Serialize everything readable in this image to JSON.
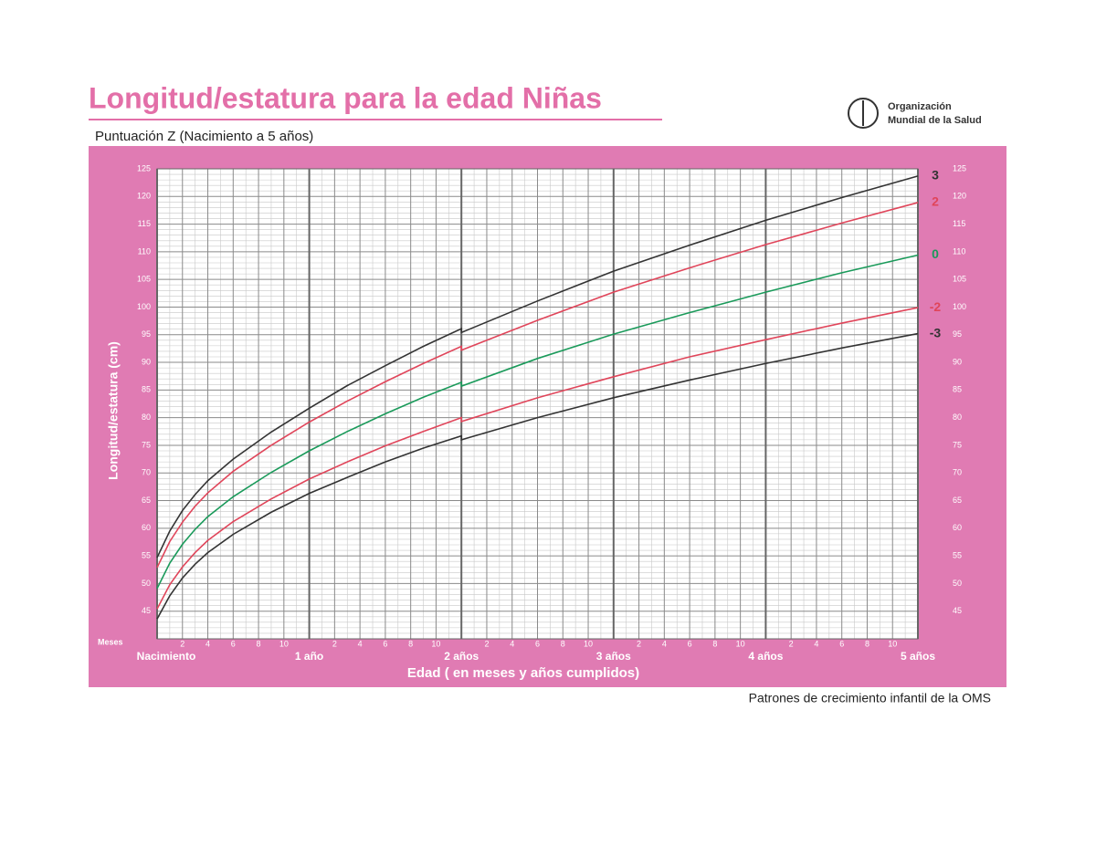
{
  "chart_data": {
    "type": "line",
    "title": "Longitud/estatura para la edad Niñas",
    "subtitle": "Puntuación Z (Nacimiento a 5 años)",
    "organization": [
      "Organización",
      "Mundial de la Salud"
    ],
    "source": "Patrones de crecimiento infantil de la OMS",
    "x_label": "Edad ( en meses y años cumplidos)",
    "x_unit_label": "Meses",
    "y_label": "Longitud/estatura (cm)",
    "x": [
      0,
      1,
      2,
      3,
      4,
      6,
      9,
      12,
      15,
      18,
      21,
      24,
      24,
      30,
      36,
      42,
      48,
      54,
      60
    ],
    "series": [
      {
        "name": "3",
        "color": "#333333",
        "values": [
          54.7,
          59.5,
          63.2,
          66.1,
          68.6,
          72.5,
          77.4,
          81.7,
          85.8,
          89.4,
          92.9,
          96.1,
          95.4,
          101.1,
          106.5,
          111.2,
          115.7,
          119.8,
          123.7
        ]
      },
      {
        "name": "2",
        "color": "#e0455a",
        "values": [
          52.9,
          57.6,
          61.1,
          64.0,
          66.4,
          70.3,
          75.0,
          79.2,
          83.0,
          86.5,
          89.8,
          92.9,
          92.2,
          97.6,
          102.7,
          107.1,
          111.3,
          115.2,
          118.9
        ]
      },
      {
        "name": "0",
        "color": "#1a9a5a",
        "values": [
          49.1,
          53.7,
          57.1,
          59.8,
          62.1,
          65.7,
          70.1,
          74.0,
          77.5,
          80.7,
          83.7,
          86.4,
          85.7,
          90.7,
          95.1,
          99.0,
          102.7,
          106.2,
          109.4
        ]
      },
      {
        "name": "-2",
        "color": "#e0455a",
        "values": [
          45.4,
          49.8,
          53.0,
          55.6,
          57.8,
          61.2,
          65.3,
          68.9,
          72.0,
          74.9,
          77.5,
          80.0,
          79.3,
          83.6,
          87.4,
          91.0,
          94.1,
          97.1,
          99.9
        ]
      },
      {
        "name": "-3",
        "color": "#333333",
        "values": [
          43.6,
          47.8,
          51.0,
          53.5,
          55.6,
          58.9,
          62.9,
          66.3,
          69.2,
          72.0,
          74.5,
          76.7,
          76.0,
          80.0,
          83.6,
          86.8,
          89.8,
          92.6,
          95.2
        ]
      }
    ],
    "xlim": [
      0,
      60
    ],
    "ylim": [
      40,
      125
    ],
    "xticks": [
      {
        "value": 0,
        "label": "Nacimiento"
      },
      2,
      4,
      6,
      8,
      10,
      {
        "value": 12,
        "label": "1 año"
      },
      {
        "value": 14,
        "label": "2"
      },
      {
        "value": 16,
        "label": "4"
      },
      {
        "value": 18,
        "label": "6"
      },
      {
        "value": 20,
        "label": "8"
      },
      {
        "value": 22,
        "label": "10"
      },
      {
        "value": 24,
        "label": "2 años"
      },
      {
        "value": 26,
        "label": "2"
      },
      {
        "value": 28,
        "label": "4"
      },
      {
        "value": 30,
        "label": "6"
      },
      {
        "value": 32,
        "label": "8"
      },
      {
        "value": 34,
        "label": "10"
      },
      {
        "value": 36,
        "label": "3 años"
      },
      {
        "value": 38,
        "label": "2"
      },
      {
        "value": 40,
        "label": "4"
      },
      {
        "value": 42,
        "label": "6"
      },
      {
        "value": 44,
        "label": "8"
      },
      {
        "value": 46,
        "label": "10"
      },
      {
        "value": 48,
        "label": "4 años"
      },
      {
        "value": 50,
        "label": "2"
      },
      {
        "value": 52,
        "label": "4"
      },
      {
        "value": 54,
        "label": "6"
      },
      {
        "value": 56,
        "label": "8"
      },
      {
        "value": 58,
        "label": "10"
      },
      {
        "value": 60,
        "label": "5 años"
      }
    ],
    "yticks": [
      45,
      50,
      55,
      60,
      65,
      70,
      75,
      80,
      85,
      90,
      95,
      100,
      105,
      110,
      115,
      120,
      125
    ],
    "grid": true
  }
}
